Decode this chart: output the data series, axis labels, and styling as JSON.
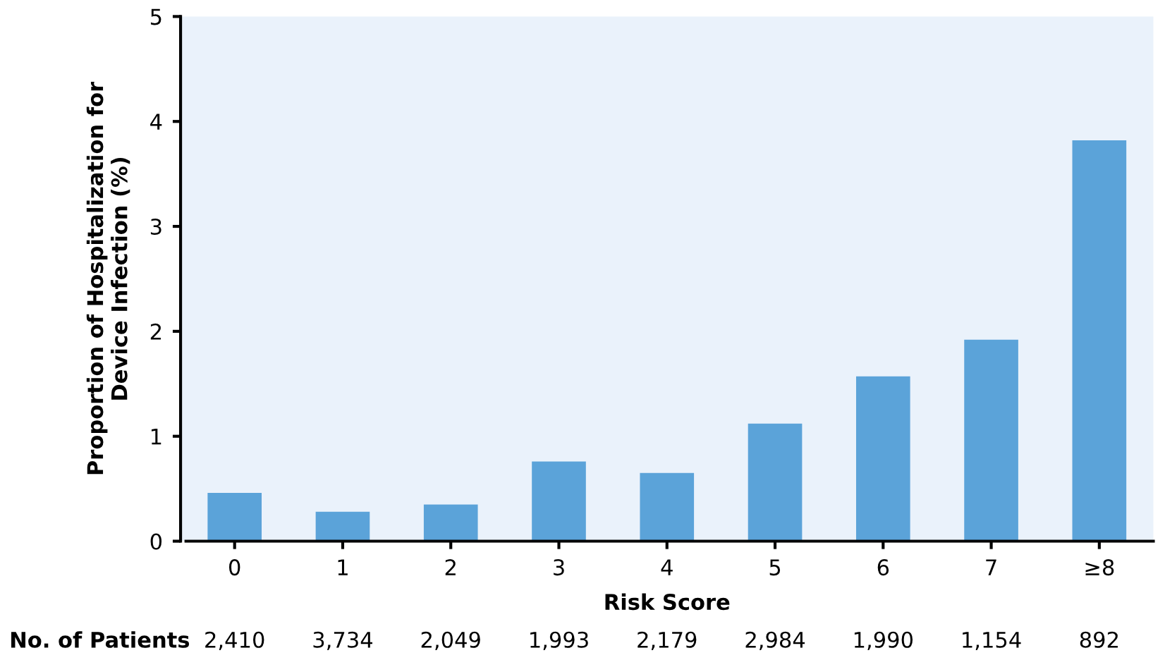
{
  "chart_data": {
    "type": "bar",
    "categories": [
      "0",
      "1",
      "2",
      "3",
      "4",
      "5",
      "6",
      "7",
      "≥8"
    ],
    "values": [
      0.46,
      0.28,
      0.35,
      0.76,
      0.65,
      1.12,
      1.57,
      1.92,
      3.82
    ],
    "color": "#5ba3d9",
    "xlabel": "Risk Score",
    "ylabel": "Proportion of Hospitalization for\nDevice Infection (%)",
    "ylim": [
      0,
      5
    ],
    "yticks": [
      0,
      1,
      2,
      3,
      4,
      5
    ],
    "grid": false,
    "annotations": [
      "No. of Patients",
      "2,410",
      "3,734",
      "2,049",
      "1,993",
      "2,179",
      "2,984",
      "1,990",
      "1,154",
      "892"
    ]
  }
}
